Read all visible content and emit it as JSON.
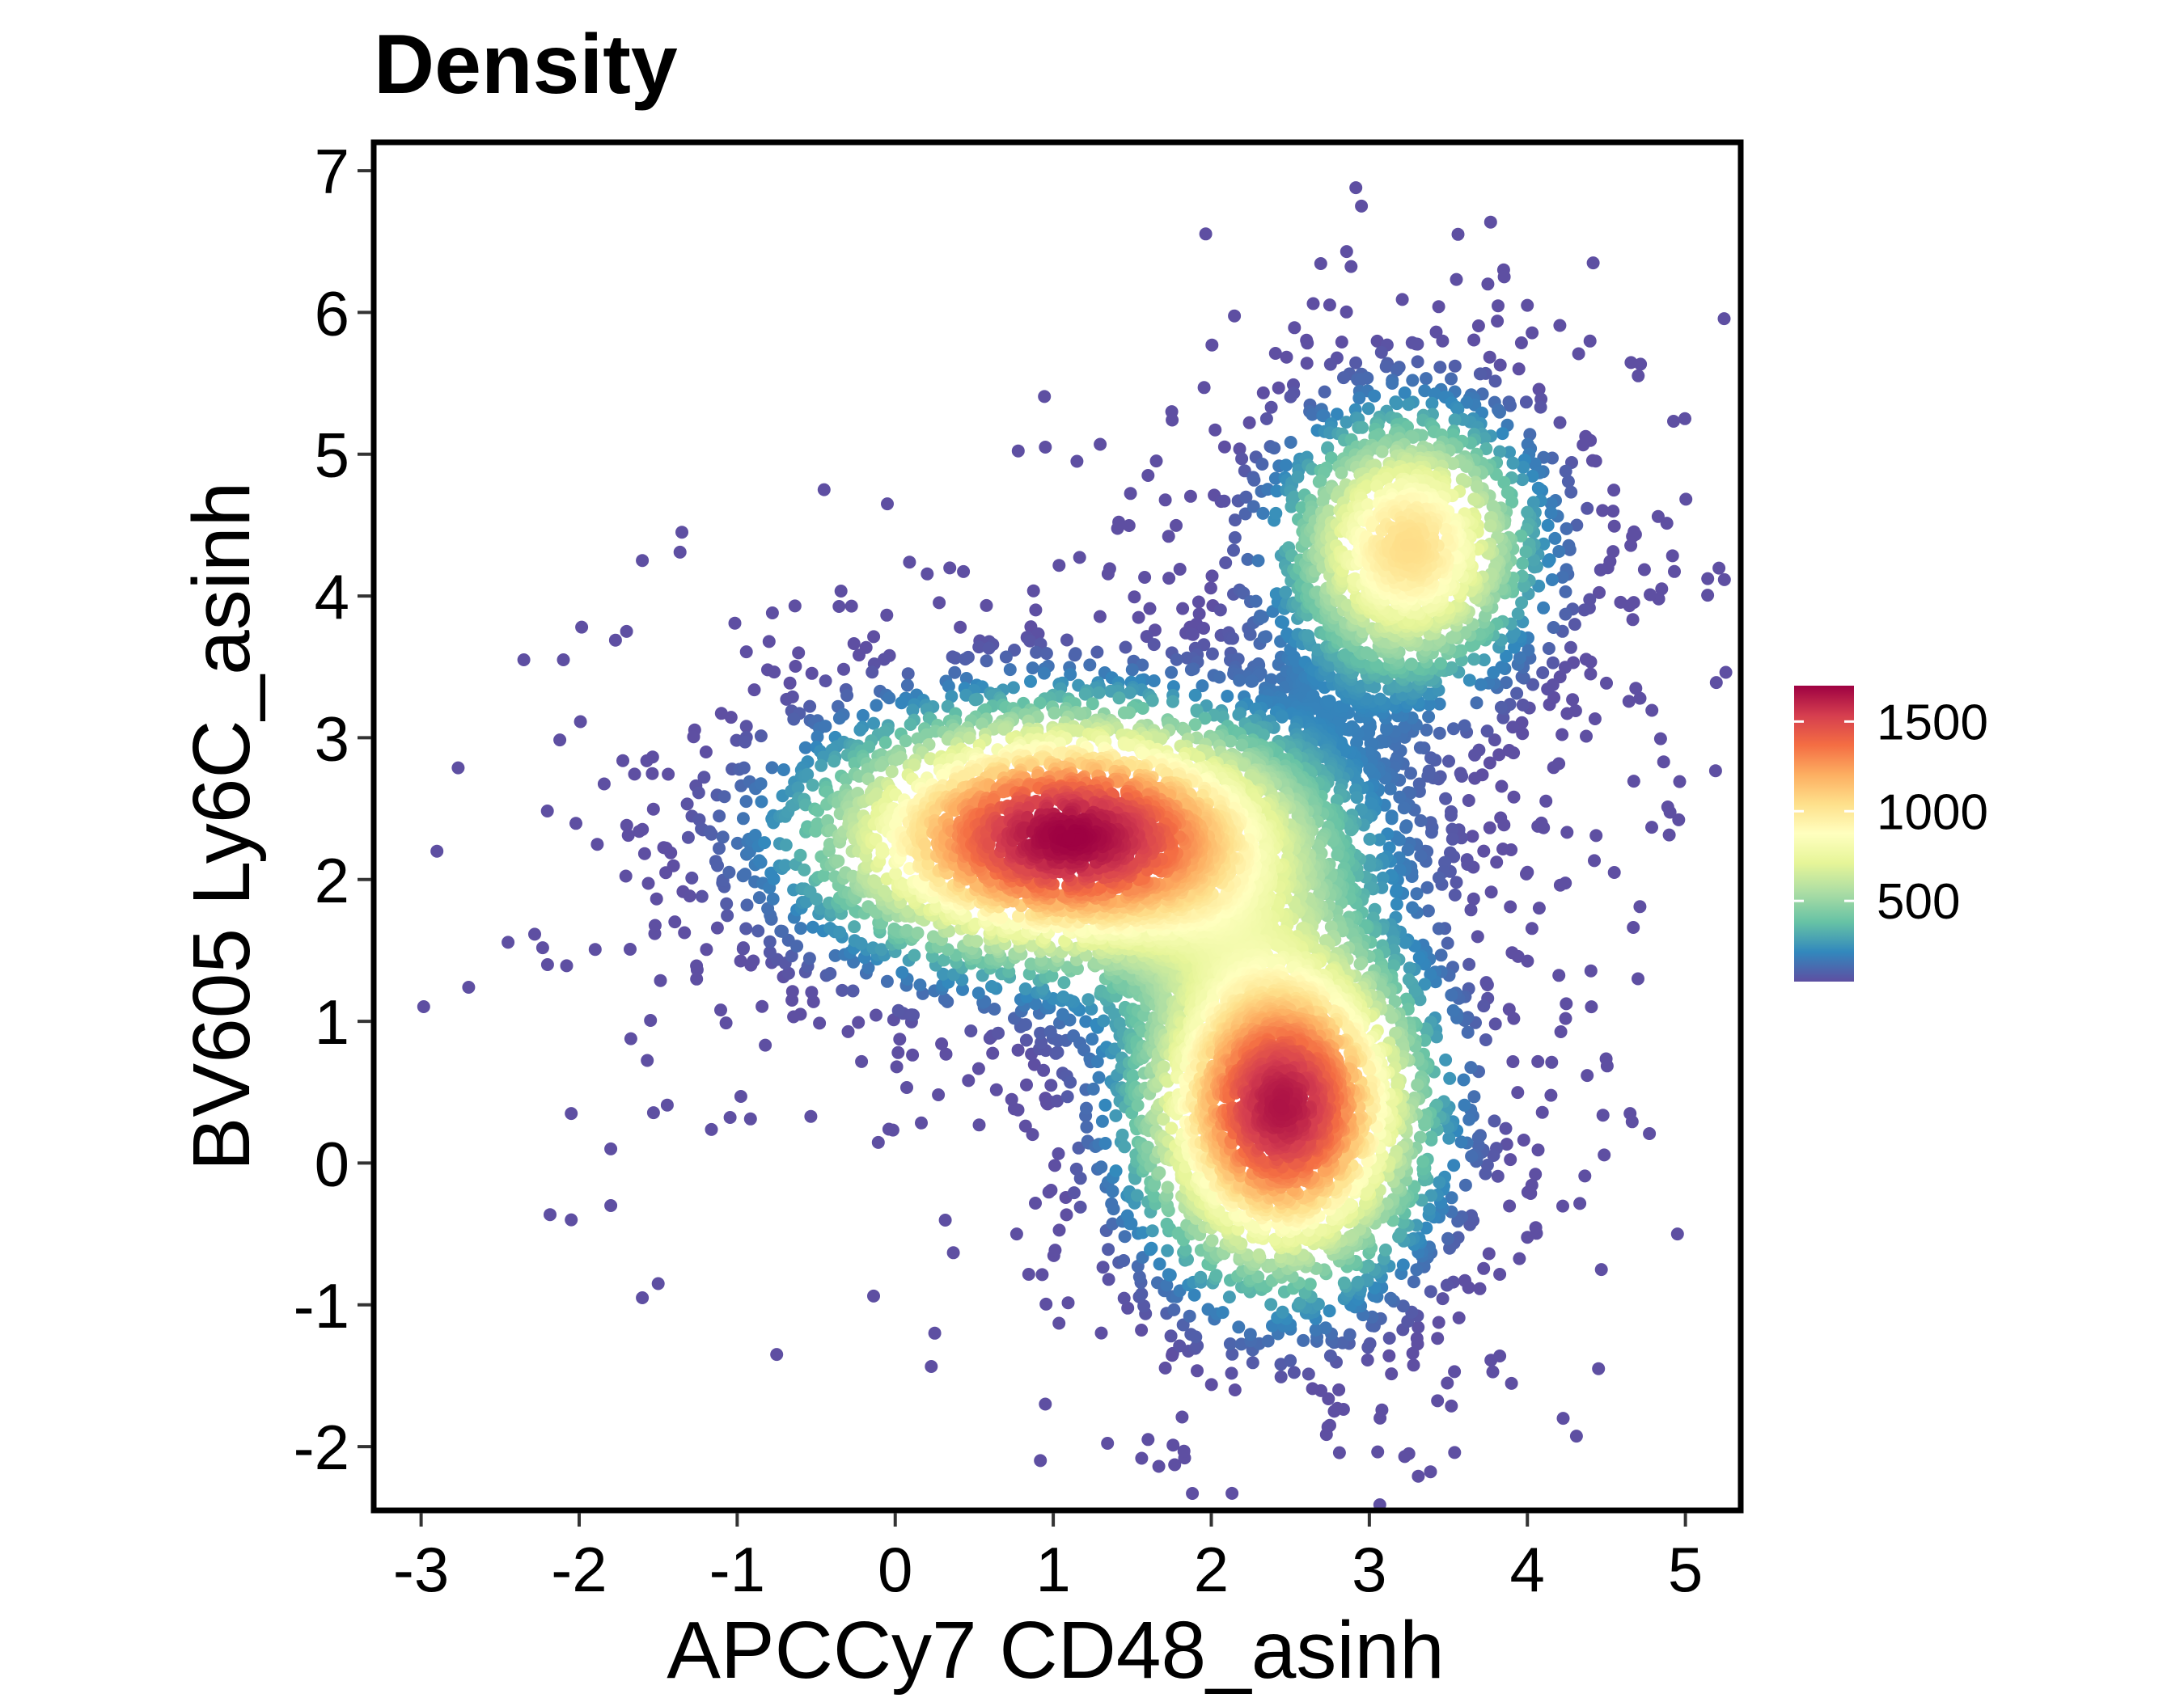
{
  "chart_data": {
    "type": "scatter",
    "title": "Density",
    "xlabel": "APCCy7 CD48_asinh",
    "ylabel": "BV605 Ly6C_asinh",
    "xlim": [
      -3.3,
      5.35
    ],
    "ylim": [
      -2.45,
      7.2
    ],
    "x_ticks": [
      -3,
      -2,
      -1,
      0,
      1,
      2,
      3,
      4,
      5
    ],
    "x_tick_labels": [
      "-3",
      "-2",
      "-1",
      "0",
      "1",
      "2",
      "3",
      "4",
      "5"
    ],
    "y_ticks": [
      -2,
      -1,
      0,
      1,
      2,
      3,
      4,
      5,
      6,
      7
    ],
    "y_tick_labels": [
      "-2",
      "-1",
      "0",
      "1",
      "2",
      "3",
      "4",
      "5",
      "6",
      "7"
    ],
    "grid": false,
    "color_by": "density",
    "colormap": "Spectral (reversed)",
    "colorbar": {
      "placement": "right",
      "range": [
        50,
        1700
      ],
      "ticks": [
        500,
        1000,
        1500
      ],
      "tick_labels": [
        "500",
        "1000",
        "1500"
      ],
      "colors": [
        "#5E4FA2",
        "#3288BD",
        "#66C2A5",
        "#ABDDA4",
        "#E6F598",
        "#FFFFBF",
        "#FEE08B",
        "#FDAE61",
        "#F46D43",
        "#D53E4F",
        "#9E0142"
      ]
    },
    "populations": [
      {
        "center": [
          1.1,
          2.3
        ],
        "spread": [
          0.95,
          0.55
        ],
        "peak_density": 1700
      },
      {
        "center": [
          2.45,
          0.4
        ],
        "spread": [
          0.55,
          0.75
        ],
        "peak_density": 1650
      },
      {
        "center": [
          3.25,
          4.35
        ],
        "spread": [
          0.5,
          0.6
        ],
        "peak_density": 1050
      }
    ],
    "outliers": [
      [
        2.95,
        6.75
      ],
      [
        -2.9,
        2.2
      ],
      [
        -2.35,
        3.55
      ],
      [
        -2.1,
        3.55
      ],
      [
        -2.2,
        1.4
      ],
      [
        -2.05,
        0.35
      ],
      [
        -2.05,
        -0.4
      ],
      [
        -1.8,
        -0.3
      ],
      [
        -1.8,
        0.1
      ],
      [
        -1.6,
        -0.95
      ],
      [
        -1.5,
        -0.85
      ],
      [
        -0.75,
        -1.35
      ],
      [
        0.25,
        -1.2
      ],
      [
        0.95,
        -1.7
      ],
      [
        1.6,
        -1.95
      ],
      [
        2.15,
        -1.6
      ],
      [
        2.75,
        -1.85
      ],
      [
        3.25,
        -2.05
      ],
      [
        4.45,
        -1.45
      ],
      [
        4.95,
        -0.5
      ],
      [
        4.85,
        4.05
      ],
      [
        3.75,
        6.2
      ],
      [
        3.85,
        6.3
      ],
      [
        4.0,
        6.05
      ],
      [
        1.75,
        5.3
      ],
      [
        2.35,
        5.25
      ],
      [
        0.95,
        5.05
      ],
      [
        1.15,
        4.95
      ],
      [
        -0.45,
        4.75
      ],
      [
        -0.05,
        4.65
      ],
      [
        -1.35,
        4.45
      ],
      [
        -1.6,
        4.25
      ],
      [
        -1.7,
        3.75
      ],
      [
        4.65,
        0.35
      ],
      [
        4.4,
        3.45
      ],
      [
        4.55,
        2.05
      ],
      [
        4.7,
        1.3
      ],
      [
        3.3,
        1.9
      ],
      [
        4.3,
        3.8
      ],
      [
        1.6,
        4.85
      ]
    ]
  }
}
